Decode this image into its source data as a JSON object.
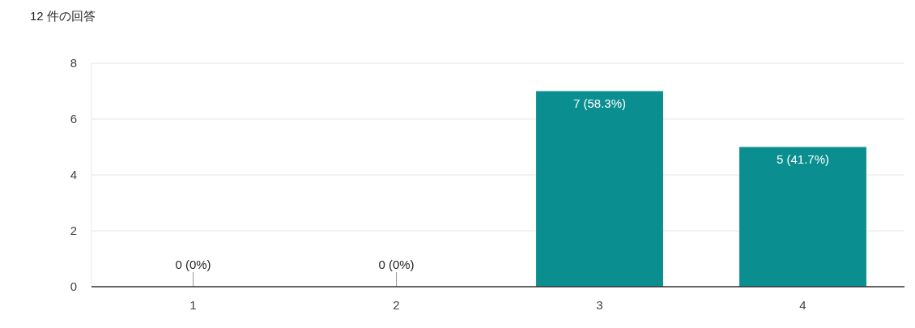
{
  "chart_data": {
    "type": "bar",
    "title": "12 件の回答",
    "categories": [
      "1",
      "2",
      "3",
      "4"
    ],
    "values": [
      0,
      0,
      7,
      5
    ],
    "value_labels": [
      "0 (0%)",
      "0 (0%)",
      "7 (58.3%)",
      "5 (41.7%)"
    ],
    "color": "#0b8e8f",
    "ylim": [
      0,
      8
    ],
    "yticks": [
      0,
      2,
      4,
      6,
      8
    ],
    "grid": "y"
  }
}
